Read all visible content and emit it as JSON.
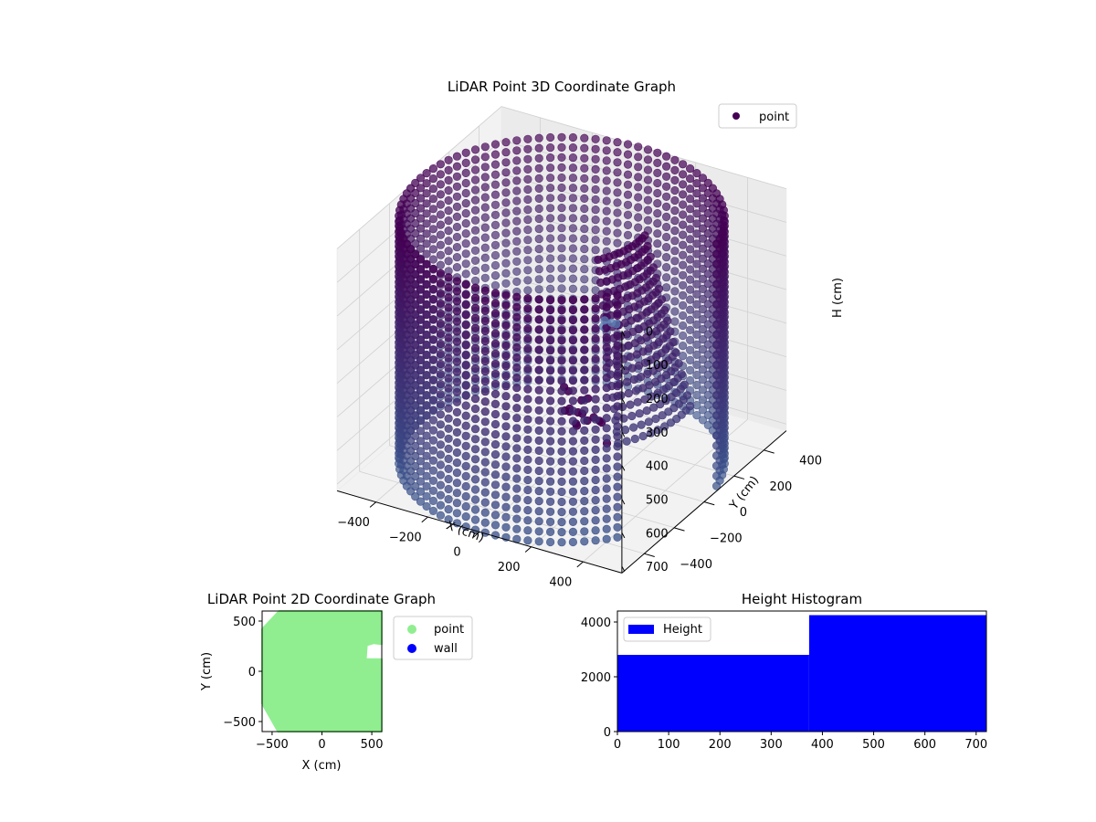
{
  "chart_data": [
    {
      "id": "scatter3d",
      "type": "scatter",
      "projection": "3d",
      "title": "LiDAR Point 3D Coordinate Graph",
      "xlabel": "X (cm)",
      "ylabel": "Y (cm)",
      "zlabel": "H (cm)",
      "xlim": [
        -550,
        550
      ],
      "ylim": [
        -550,
        550
      ],
      "zlim": [
        0,
        720
      ],
      "zaxis_inverted": true,
      "xticks": [
        -400,
        -200,
        0,
        200,
        400
      ],
      "yticks": [
        -400,
        -200,
        0,
        200,
        400
      ],
      "zticks": [
        0,
        100,
        200,
        300,
        400,
        500,
        600,
        700
      ],
      "xtick_labels": [
        "−400",
        "−200",
        "0",
        "200",
        "400"
      ],
      "ytick_labels": [
        "−400",
        "−200",
        "0",
        "200",
        "400"
      ],
      "ztick_labels": [
        "0",
        "100",
        "200",
        "300",
        "400",
        "500",
        "600",
        "700"
      ],
      "legend": {
        "position": "top-right",
        "entries": [
          {
            "label": "point",
            "color": "#440154"
          }
        ]
      },
      "colormap": "viridis",
      "cylinder": {
        "radius": 545,
        "height_min": 0,
        "height_max": 720,
        "open_sector_deg": [
          -40,
          10
        ]
      },
      "cluster_points": [
        [
          -60,
          200,
          700
        ],
        [
          -40,
          170,
          690
        ],
        [
          -70,
          230,
          680
        ],
        [
          -30,
          190,
          660
        ],
        [
          -80,
          160,
          650
        ],
        [
          -50,
          140,
          630
        ],
        [
          -20,
          210,
          620
        ],
        [
          -90,
          200,
          610
        ],
        [
          -10,
          150,
          600
        ],
        [
          30,
          120,
          640
        ],
        [
          60,
          110,
          620
        ],
        [
          -120,
          260,
          700
        ],
        [
          100,
          80,
          610
        ],
        [
          140,
          60,
          660
        ],
        [
          10,
          250,
          700
        ],
        [
          -60,
          120,
          560
        ]
      ],
      "outlier_points": [
        [
          380,
          -380,
          90
        ],
        [
          420,
          -440,
          40
        ],
        [
          470,
          -480,
          20
        ],
        [
          500,
          -500,
          10
        ]
      ],
      "grid": true
    },
    {
      "id": "scatter2d",
      "type": "scatter",
      "title": "LiDAR Point 2D Coordinate Graph",
      "xlabel": "X (cm)",
      "ylabel": "Y (cm)",
      "xlim": [
        -600,
        600
      ],
      "ylim": [
        -600,
        600
      ],
      "xticks": [
        -500,
        0,
        500
      ],
      "yticks": [
        -500,
        0,
        500
      ],
      "xtick_labels": [
        "−500",
        "0",
        "500"
      ],
      "ytick_labels": [
        "−500",
        "0",
        "500"
      ],
      "legend": {
        "position": "outside-right",
        "entries": [
          {
            "label": "point",
            "color": "#90ee90"
          },
          {
            "label": "wall",
            "color": "#0000ff"
          }
        ]
      },
      "region_outline": [
        [
          -430,
          600
        ],
        [
          600,
          600
        ],
        [
          600,
          270
        ],
        [
          520,
          280
        ],
        [
          450,
          260
        ],
        [
          440,
          120
        ],
        [
          600,
          120
        ],
        [
          600,
          -600
        ],
        [
          -440,
          -600
        ],
        [
          -600,
          -320
        ],
        [
          -600,
          420
        ]
      ]
    },
    {
      "id": "histogram",
      "type": "bar",
      "title": "Height Histogram",
      "xlim": [
        0,
        720
      ],
      "ylim": [
        0,
        4400
      ],
      "xticks": [
        0,
        100,
        200,
        300,
        400,
        500,
        600,
        700
      ],
      "yticks": [
        0,
        2000,
        4000
      ],
      "bins": [
        {
          "x0": 0,
          "x1": 374,
          "count": 2800
        },
        {
          "x0": 374,
          "x1": 720,
          "count": 4250
        }
      ],
      "legend": {
        "position": "top-left",
        "entries": [
          {
            "label": "Height",
            "color": "#0000ff"
          }
        ]
      }
    }
  ]
}
